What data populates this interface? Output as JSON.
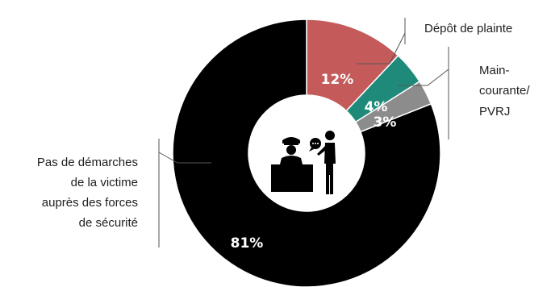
{
  "chart_data": {
    "type": "pie",
    "title": "",
    "slices": [
      {
        "label": "Dépôt de plainte",
        "value": 12,
        "display": "12%",
        "color": "#c45a5a"
      },
      {
        "label_lines": [
          "Main-",
          "courante/",
          "PVRJ"
        ],
        "value": 4,
        "display": "4%",
        "color": "#1f8a7a"
      },
      {
        "value": 3,
        "display": "3%",
        "color": "#8c8c8c"
      },
      {
        "label_lines": [
          "Pas de démarches",
          "de la victime",
          "auprès des forces",
          "de sécurité"
        ],
        "value": 81,
        "display": "81%",
        "color": "#000000"
      }
    ],
    "center_icon": "police-desk-icon"
  }
}
